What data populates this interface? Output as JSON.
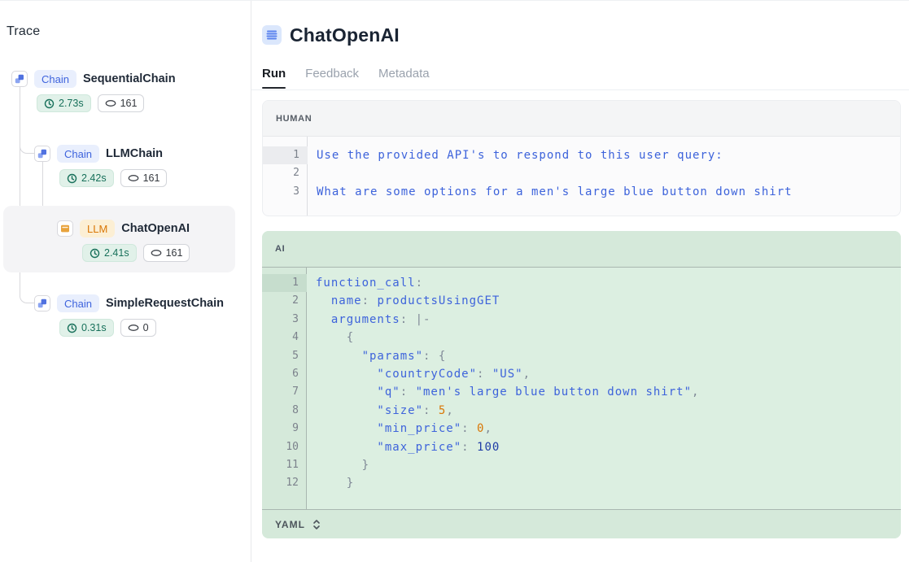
{
  "trace_panel": {
    "title": "Trace",
    "nodes": [
      {
        "type": "Chain",
        "name": "SequentialChain",
        "time": "2.73s",
        "tokens": "161",
        "selected": false
      },
      {
        "type": "Chain",
        "name": "LLMChain",
        "time": "2.42s",
        "tokens": "161",
        "selected": false
      },
      {
        "type": "LLM",
        "name": "ChatOpenAI",
        "time": "2.41s",
        "tokens": "161",
        "selected": true
      },
      {
        "type": "Chain",
        "name": "SimpleRequestChain",
        "time": "0.31s",
        "tokens": "0",
        "selected": false
      }
    ]
  },
  "main": {
    "title": "ChatOpenAI",
    "tabs": [
      {
        "label": "Run",
        "active": true
      },
      {
        "label": "Feedback",
        "active": false
      },
      {
        "label": "Metadata",
        "active": false
      }
    ],
    "sections": [
      {
        "label": "HUMAN",
        "highlight_line": 1,
        "lines": [
          [
            [
              "Use the provided API's to respond to this user query:",
              "blue"
            ]
          ],
          [],
          [
            [
              "What are some options for a men's large blue button down shirt",
              "blue"
            ]
          ]
        ]
      },
      {
        "label": "AI",
        "highlight_line": 1,
        "format_selector": "YAML",
        "lines": [
          [
            [
              "function_call",
              "blue"
            ],
            [
              ":",
              "gray"
            ]
          ],
          [
            [
              "  name",
              "blue"
            ],
            [
              ": ",
              "gray"
            ],
            [
              "productsUsingGET",
              "blue"
            ]
          ],
          [
            [
              "  arguments",
              "blue"
            ],
            [
              ": |-",
              "gray"
            ]
          ],
          [
            [
              "    {",
              "gray"
            ]
          ],
          [
            [
              "      \"params\"",
              "blue"
            ],
            [
              ": {",
              "gray"
            ]
          ],
          [
            [
              "        \"countryCode\"",
              "blue"
            ],
            [
              ": ",
              "gray"
            ],
            [
              "\"US\"",
              "blue"
            ],
            [
              ",",
              "gray"
            ]
          ],
          [
            [
              "        \"q\"",
              "blue"
            ],
            [
              ": ",
              "gray"
            ],
            [
              "\"men's large blue button down shirt\"",
              "blue"
            ],
            [
              ",",
              "gray"
            ]
          ],
          [
            [
              "        \"size\"",
              "blue"
            ],
            [
              ": ",
              "gray"
            ],
            [
              "5",
              "orange"
            ],
            [
              ",",
              "gray"
            ]
          ],
          [
            [
              "        \"min_price\"",
              "blue"
            ],
            [
              ": ",
              "gray"
            ],
            [
              "0",
              "orange"
            ],
            [
              ",",
              "gray"
            ]
          ],
          [
            [
              "        \"max_price\"",
              "blue"
            ],
            [
              ": ",
              "gray"
            ],
            [
              "100",
              "navy"
            ]
          ],
          [
            [
              "      }",
              "gray"
            ]
          ],
          [
            [
              "    }",
              "gray"
            ]
          ]
        ]
      }
    ]
  },
  "icons": {
    "chain": "workflow-chain-icon",
    "llm": "llm-box-icon",
    "latency": "clock-icon",
    "tokens": "token-coin-icon",
    "title": "messages-list-icon",
    "format_selector": "up-down-chevron-icon"
  },
  "colors": {
    "accent_blue": "#3e63dd",
    "badge_chain_bg": "#e9effd",
    "badge_llm_text": "#d97706",
    "badge_llm_bg": "#fcefd4",
    "latency_text": "#17705a",
    "latency_bg": "#e1f1e9",
    "ai_section_bg": "#dcefe1",
    "ai_section_header_bg": "#d5e9da",
    "code_blue": "#3d63db",
    "code_gray": "#7f8896",
    "code_orange": "#d97706",
    "code_navy": "#1f3ca6"
  }
}
